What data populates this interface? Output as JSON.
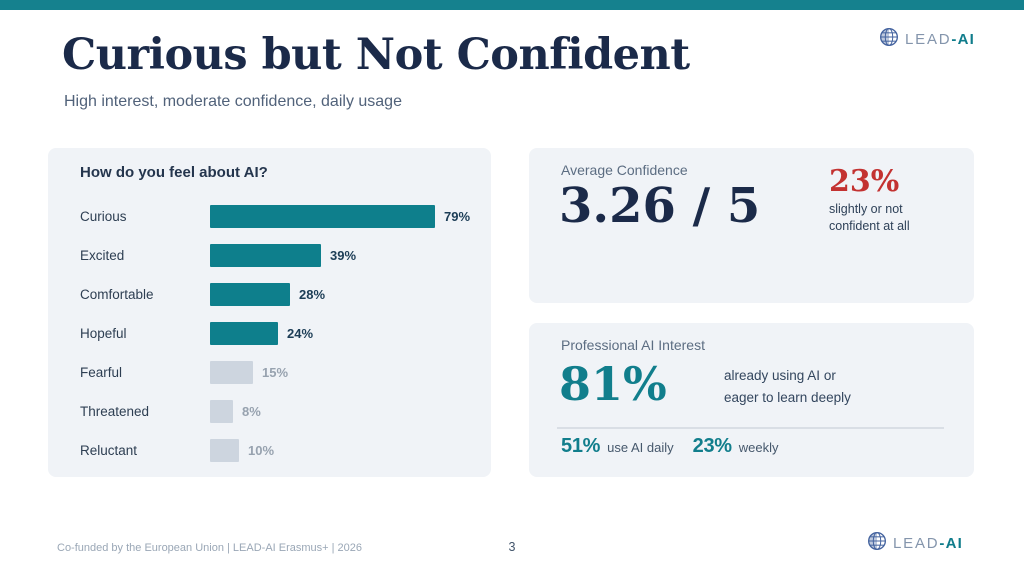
{
  "slide": {
    "title": "Curious but Not Confident",
    "subtitle": "High interest, moderate confidence, daily usage",
    "footer": "Co-funded by the European Union  |  LEAD-AI Erasmus+  |  2026",
    "page_number": "3"
  },
  "logo": {
    "lead": "LEAD",
    "ai": "-AI",
    "icon": "globe-icon"
  },
  "chart_data": {
    "type": "bar",
    "orientation": "horizontal",
    "title": "How do you feel about AI?",
    "categories": [
      "Curious",
      "Excited",
      "Comfortable",
      "Hopeful",
      "Fearful",
      "Threatened",
      "Reluctant"
    ],
    "values": [
      79,
      39,
      28,
      24,
      15,
      8,
      10
    ],
    "value_suffix": "%",
    "highlighted": [
      true,
      true,
      true,
      true,
      false,
      false,
      false
    ],
    "highlight_color": "#0e7f8c",
    "muted_color": "#cdd5df",
    "xlim": [
      0,
      100
    ],
    "grid": false,
    "legend": false
  },
  "cards": {
    "confidence": {
      "label": "Average Confidence",
      "score": "3.26 / 5",
      "stat_value": "23%",
      "stat_caption_line1": "slightly or not",
      "stat_caption_line2": "confident at all"
    },
    "interest": {
      "label": "Professional AI Interest",
      "big_value": "81%",
      "caption_line1": "already using AI or",
      "caption_line2": "eager to learn deeply",
      "stat1_value": "51%",
      "stat1_label": "use AI daily",
      "stat2_value": "23%",
      "stat2_label": "weekly"
    }
  },
  "colors": {
    "accent_teal": "#15818e",
    "navy": "#1b2a49",
    "red": "#c33231",
    "card_bg": "#f0f3f7"
  }
}
